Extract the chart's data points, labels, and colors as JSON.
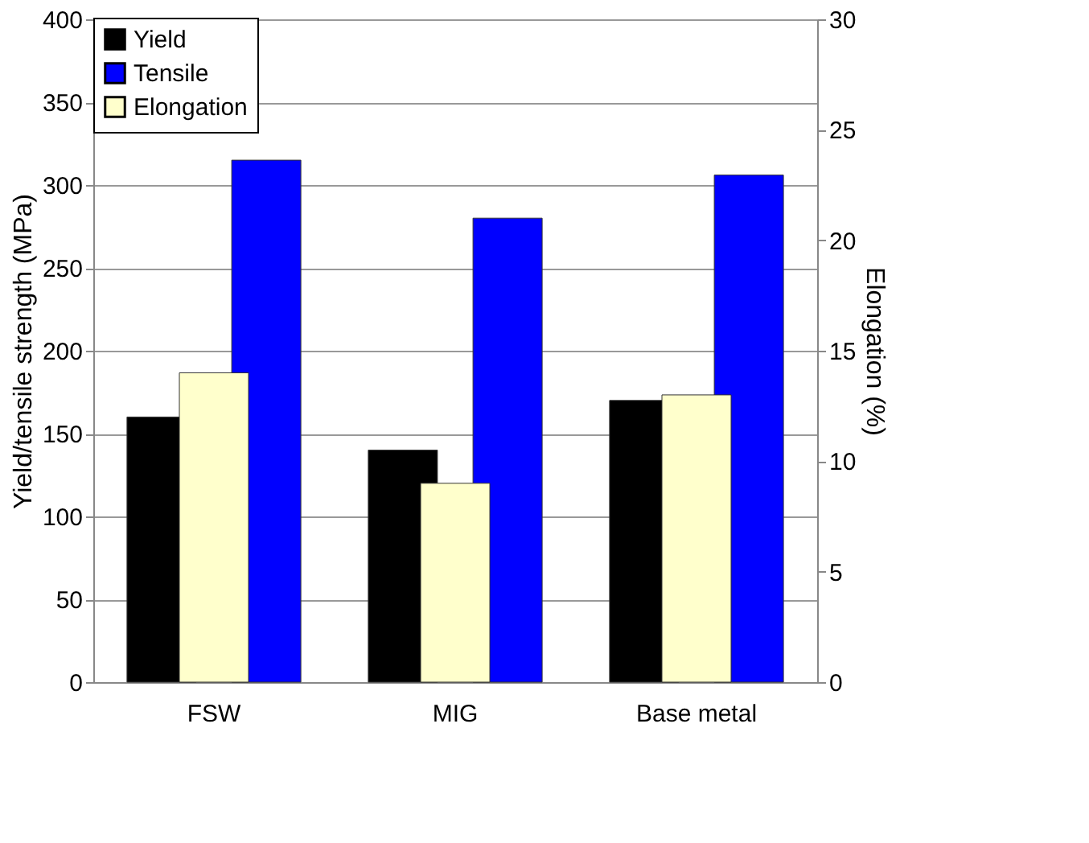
{
  "chart_data": {
    "type": "bar",
    "categories": [
      "FSW",
      "MIG",
      "Base metal"
    ],
    "ylabel": "Yield/tensile strength (MPa)",
    "y2label": "Elongation (%)",
    "series": [
      {
        "name": "Yield",
        "color": "#000000",
        "values": [
          160,
          140,
          170
        ]
      },
      {
        "name": "Tensile",
        "color": "#0000ff",
        "values": [
          315,
          280,
          306
        ]
      },
      {
        "name": "Elongation",
        "color": "#ffffcc",
        "values": [
          14,
          9,
          13
        ],
        "axis": "y2"
      }
    ],
    "ylim": [
      0,
      400
    ],
    "yticks": [
      0,
      50,
      100,
      150,
      200,
      250,
      300,
      350,
      400
    ],
    "y2lim": [
      0,
      30
    ],
    "y2ticks": [
      0,
      5,
      10,
      15,
      20,
      25,
      30
    ],
    "grid": "y",
    "legend": "top"
  }
}
